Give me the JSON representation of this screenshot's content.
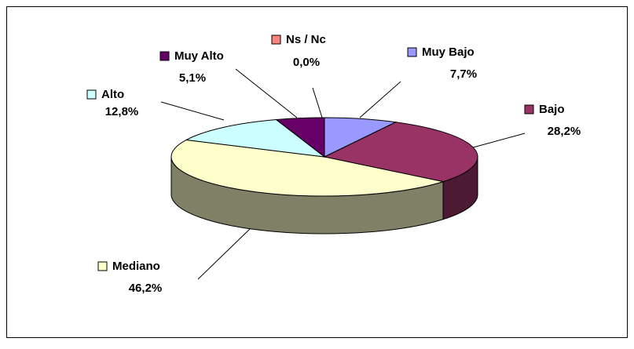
{
  "chart_data": {
    "type": "pie3d",
    "categories": [
      "Muy Bajo",
      "Bajo",
      "Mediano",
      "Alto",
      "Muy Alto",
      "Ns / Nc"
    ],
    "values": [
      7.7,
      28.2,
      46.2,
      12.8,
      5.1,
      0.0
    ],
    "value_labels": [
      "7,7%",
      "28,2%",
      "46,2%",
      "12,8%",
      "5,1%",
      "0,0%"
    ],
    "colors": [
      "#9999ff",
      "#993366",
      "#ffffcc",
      "#ccffff",
      "#660066",
      "#ff8080"
    ]
  }
}
